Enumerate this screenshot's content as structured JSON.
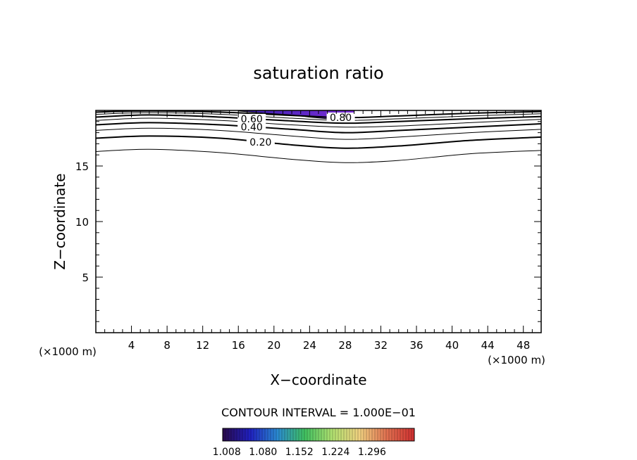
{
  "chart_data": {
    "type": "contour",
    "title": "saturation ratio",
    "xlabel": "X−coordinate",
    "ylabel": "Z−coordinate",
    "x_unit_left": "(×1000 m)",
    "x_unit_right": "(×1000 m)",
    "xlim": [
      0,
      50
    ],
    "ylim": [
      0,
      20
    ],
    "xticks": [
      4,
      8,
      12,
      16,
      20,
      24,
      28,
      32,
      36,
      40,
      44,
      48
    ],
    "yticks": [
      5,
      10,
      15
    ],
    "x_minor_step": 1,
    "y_minor_step": 1,
    "contour_interval_text": "CONTOUR INTERVAL = 1.000E−01",
    "contours": [
      {
        "level": 0.1,
        "bold": false,
        "points": [
          [
            0,
            16.3
          ],
          [
            6,
            16.5
          ],
          [
            14,
            16.2
          ],
          [
            22,
            15.6
          ],
          [
            28,
            15.3
          ],
          [
            34,
            15.5
          ],
          [
            42,
            16.1
          ],
          [
            50,
            16.4
          ]
        ]
      },
      {
        "level": 0.2,
        "bold": true,
        "label": "0.20",
        "points": [
          [
            0,
            17.5
          ],
          [
            6,
            17.7
          ],
          [
            14,
            17.5
          ],
          [
            22,
            16.9
          ],
          [
            28,
            16.6
          ],
          [
            34,
            16.8
          ],
          [
            42,
            17.3
          ],
          [
            50,
            17.6
          ]
        ]
      },
      {
        "level": 0.3,
        "bold": false,
        "points": [
          [
            0,
            18.2
          ],
          [
            6,
            18.4
          ],
          [
            14,
            18.2
          ],
          [
            22,
            17.7
          ],
          [
            28,
            17.4
          ],
          [
            34,
            17.6
          ],
          [
            42,
            18.0
          ],
          [
            50,
            18.3
          ]
        ]
      },
      {
        "level": 0.4,
        "bold": true,
        "label": "0.40",
        "points": [
          [
            0,
            18.7
          ],
          [
            6,
            18.9
          ],
          [
            14,
            18.7
          ],
          [
            22,
            18.3
          ],
          [
            28,
            18.0
          ],
          [
            34,
            18.2
          ],
          [
            42,
            18.5
          ],
          [
            50,
            18.8
          ]
        ]
      },
      {
        "level": 0.5,
        "bold": false,
        "points": [
          [
            0,
            19.1
          ],
          [
            6,
            19.3
          ],
          [
            14,
            19.1
          ],
          [
            22,
            18.7
          ],
          [
            28,
            18.5
          ],
          [
            34,
            18.6
          ],
          [
            42,
            18.9
          ],
          [
            50,
            19.2
          ]
        ]
      },
      {
        "level": 0.6,
        "bold": true,
        "label": "0.60",
        "points": [
          [
            0,
            19.4
          ],
          [
            6,
            19.6
          ],
          [
            14,
            19.4
          ],
          [
            22,
            19.05
          ],
          [
            28,
            18.85
          ],
          [
            34,
            19.0
          ],
          [
            42,
            19.25
          ],
          [
            50,
            19.45
          ]
        ]
      },
      {
        "level": 0.7,
        "bold": false,
        "points": [
          [
            0,
            19.65
          ],
          [
            6,
            19.8
          ],
          [
            14,
            19.65
          ],
          [
            22,
            19.3
          ],
          [
            28,
            19.1
          ],
          [
            34,
            19.25
          ],
          [
            42,
            19.5
          ],
          [
            50,
            19.7
          ]
        ]
      },
      {
        "level": 0.8,
        "bold": true,
        "label": "0.80",
        "points": [
          [
            0,
            19.85
          ],
          [
            6,
            19.95
          ],
          [
            14,
            19.85
          ],
          [
            22,
            19.55
          ],
          [
            28,
            19.35
          ],
          [
            34,
            19.5
          ],
          [
            42,
            19.75
          ],
          [
            50,
            19.9
          ]
        ]
      }
    ],
    "shaded_region": {
      "x_range": [
        16,
        29
      ],
      "color_low": "#3a1fae",
      "color_high": "#7c2fd8",
      "outline": [
        [
          16,
          20
        ],
        [
          16,
          19.95
        ],
        [
          19,
          19.75
        ],
        [
          22,
          19.6
        ],
        [
          24,
          19.4
        ],
        [
          26,
          19.25
        ],
        [
          28,
          19.3
        ],
        [
          29,
          19.5
        ],
        [
          29,
          20
        ]
      ]
    },
    "colorbar": {
      "tick_labels": [
        "1.008",
        "1.080",
        "1.152",
        "1.224",
        "1.296"
      ],
      "min": 1.0,
      "max": 1.38,
      "stops": [
        "#2a0a4a",
        "#2020c0",
        "#2a8ad0",
        "#40c060",
        "#b0e070",
        "#f0d080",
        "#e07050",
        "#d03030"
      ]
    }
  }
}
